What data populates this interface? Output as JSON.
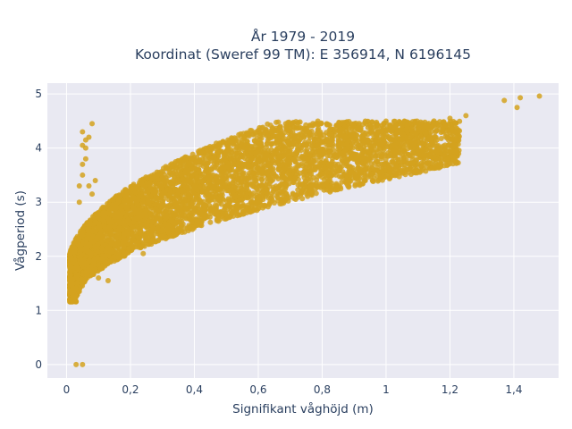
{
  "chart_data": {
    "type": "scatter",
    "title_line1": "År 1979 - 2019",
    "title_line2": "Koordinat (Sweref 99 TM): E 356914, N 6196145",
    "xlabel": "Signifikant våghöjd (m)",
    "ylabel": "Vågperiod (s)",
    "xlim": [
      -0.06,
      1.54
    ],
    "ylim": [
      -0.25,
      5.2
    ],
    "xticks": [
      0,
      0.2,
      0.4,
      0.6,
      0.8,
      1,
      1.2,
      1.4
    ],
    "xtick_labels": [
      "0",
      "0,2",
      "0,4",
      "0,6",
      "0,8",
      "1",
      "1,2",
      "1,4"
    ],
    "yticks": [
      0,
      1,
      2,
      3,
      4,
      5
    ],
    "ytick_labels": [
      "0",
      "1",
      "2",
      "3",
      "4",
      "5"
    ],
    "grid": true,
    "marker_color": "#d4a21e",
    "plot_bg": "#e9e9f2",
    "points": [
      [
        0.03,
        0.0
      ],
      [
        0.05,
        0.0
      ],
      [
        0.01,
        1.2
      ],
      [
        0.01,
        1.6
      ],
      [
        0.02,
        1.3
      ],
      [
        0.02,
        1.5
      ],
      [
        0.03,
        1.4
      ],
      [
        0.03,
        1.25
      ],
      [
        0.04,
        1.35
      ],
      [
        0.05,
        1.5
      ],
      [
        0.06,
        1.7
      ],
      [
        0.04,
        2.2
      ],
      [
        0.05,
        2.5
      ],
      [
        0.04,
        3.0
      ],
      [
        0.04,
        3.3
      ],
      [
        0.05,
        3.5
      ],
      [
        0.05,
        3.7
      ],
      [
        0.06,
        3.8
      ],
      [
        0.06,
        4.0
      ],
      [
        0.05,
        4.05
      ],
      [
        0.06,
        4.15
      ],
      [
        0.07,
        4.2
      ],
      [
        0.05,
        4.3
      ],
      [
        0.08,
        4.45
      ],
      [
        0.07,
        3.3
      ],
      [
        0.08,
        3.15
      ],
      [
        0.09,
        3.4
      ],
      [
        0.1,
        1.6
      ],
      [
        0.12,
        1.9
      ],
      [
        0.15,
        2.2
      ],
      [
        0.18,
        2.4
      ],
      [
        0.2,
        2.6
      ],
      [
        0.22,
        2.7
      ],
      [
        0.25,
        2.85
      ],
      [
        0.3,
        3.0
      ],
      [
        0.35,
        3.2
      ],
      [
        0.4,
        3.3
      ],
      [
        0.45,
        3.45
      ],
      [
        0.5,
        3.55
      ],
      [
        0.55,
        3.7
      ],
      [
        0.6,
        3.8
      ],
      [
        0.65,
        3.9
      ],
      [
        0.7,
        3.95
      ],
      [
        0.75,
        4.05
      ],
      [
        0.8,
        4.1
      ],
      [
        0.85,
        4.2
      ],
      [
        0.9,
        4.25
      ],
      [
        0.95,
        4.3
      ],
      [
        1.0,
        4.25
      ],
      [
        1.05,
        4.4
      ],
      [
        1.1,
        4.45
      ],
      [
        1.15,
        4.5
      ],
      [
        1.2,
        4.55
      ],
      [
        1.25,
        4.6
      ],
      [
        1.37,
        4.88
      ],
      [
        1.41,
        4.75
      ],
      [
        1.42,
        4.93
      ],
      [
        1.48,
        4.96
      ],
      [
        0.42,
        2.6
      ],
      [
        0.55,
        3.05
      ],
      [
        0.7,
        3.45
      ],
      [
        0.85,
        3.7
      ],
      [
        0.2,
        3.2
      ],
      [
        0.3,
        3.45
      ],
      [
        0.24,
        2.05
      ],
      [
        0.13,
        1.55
      ]
    ]
  }
}
